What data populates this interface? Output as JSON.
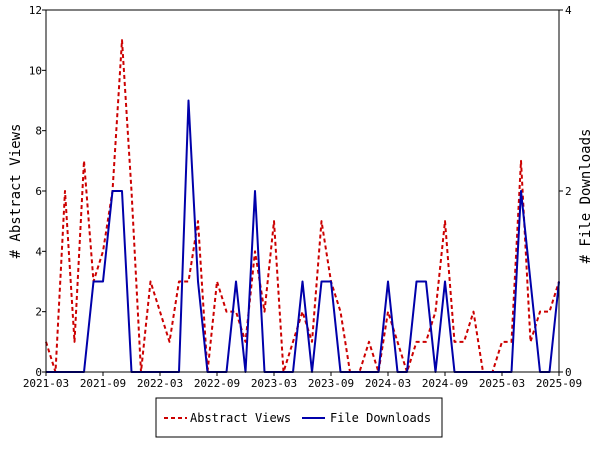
{
  "chart_data": {
    "type": "line",
    "ylabel": "# Abstract Views",
    "y2label": "# File Downloads",
    "ylim": [
      0,
      12
    ],
    "y2lim": [
      0,
      4
    ],
    "yticks": [
      "0",
      "2",
      "4",
      "6",
      "8",
      "10",
      "12"
    ],
    "y2ticks": [
      "0",
      "2",
      "4"
    ],
    "xticks": [
      "2021-03",
      "2021-09",
      "2022-03",
      "2022-09",
      "2023-03",
      "2023-09",
      "2024-03",
      "2024-09",
      "2025-03",
      "2025-09"
    ],
    "x_start": "2021-03",
    "x_end": "2025-09",
    "grid": false,
    "legend_position": "bottom",
    "series": [
      {
        "name": "Abstract Views",
        "axis": "left",
        "color": "#cc0000",
        "style": "dashed",
        "points": [
          [
            "2021-03",
            1
          ],
          [
            "2021-04",
            0
          ],
          [
            "2021-05",
            6
          ],
          [
            "2021-06",
            1
          ],
          [
            "2021-07",
            7
          ],
          [
            "2021-08",
            3
          ],
          [
            "2021-09",
            4
          ],
          [
            "2021-10",
            6
          ],
          [
            "2021-11",
            11
          ],
          [
            "2021-12",
            6
          ],
          [
            "2022-01",
            0
          ],
          [
            "2022-02",
            3
          ],
          [
            "2022-03",
            2
          ],
          [
            "2022-04",
            1
          ],
          [
            "2022-05",
            3
          ],
          [
            "2022-06",
            3
          ],
          [
            "2022-07",
            5
          ],
          [
            "2022-08",
            0
          ],
          [
            "2022-09",
            3
          ],
          [
            "2022-10",
            2
          ],
          [
            "2022-11",
            2
          ],
          [
            "2022-12",
            1
          ],
          [
            "2023-01",
            4
          ],
          [
            "2023-02",
            2
          ],
          [
            "2023-03",
            5
          ],
          [
            "2023-04",
            0
          ],
          [
            "2023-05",
            1
          ],
          [
            "2023-06",
            2
          ],
          [
            "2023-07",
            1
          ],
          [
            "2023-08",
            5
          ],
          [
            "2023-09",
            3
          ],
          [
            "2023-10",
            2
          ],
          [
            "2023-11",
            0
          ],
          [
            "2023-12",
            0
          ],
          [
            "2024-01",
            1
          ],
          [
            "2024-02",
            0
          ],
          [
            "2024-03",
            2
          ],
          [
            "2024-04",
            1
          ],
          [
            "2024-05",
            0
          ],
          [
            "2024-06",
            1
          ],
          [
            "2024-07",
            1
          ],
          [
            "2024-08",
            2
          ],
          [
            "2024-09",
            5
          ],
          [
            "2024-10",
            1
          ],
          [
            "2024-11",
            1
          ],
          [
            "2024-12",
            2
          ],
          [
            "2025-01",
            0
          ],
          [
            "2025-02",
            0
          ],
          [
            "2025-03",
            1
          ],
          [
            "2025-04",
            1
          ],
          [
            "2025-05",
            7
          ],
          [
            "2025-06",
            1
          ],
          [
            "2025-07",
            2
          ],
          [
            "2025-08",
            2
          ],
          [
            "2025-09",
            3
          ]
        ]
      },
      {
        "name": "File Downloads",
        "axis": "right",
        "color": "#0000aa",
        "style": "solid",
        "points": [
          [
            "2021-03",
            0
          ],
          [
            "2021-04",
            0
          ],
          [
            "2021-05",
            0
          ],
          [
            "2021-06",
            0
          ],
          [
            "2021-07",
            0
          ],
          [
            "2021-08",
            1
          ],
          [
            "2021-09",
            1
          ],
          [
            "2021-10",
            2
          ],
          [
            "2021-11",
            2
          ],
          [
            "2021-12",
            0
          ],
          [
            "2022-01",
            0
          ],
          [
            "2022-02",
            0
          ],
          [
            "2022-03",
            0
          ],
          [
            "2022-04",
            0
          ],
          [
            "2022-05",
            0
          ],
          [
            "2022-06",
            3
          ],
          [
            "2022-07",
            1
          ],
          [
            "2022-08",
            0
          ],
          [
            "2022-09",
            0
          ],
          [
            "2022-10",
            0
          ],
          [
            "2022-11",
            1
          ],
          [
            "2022-12",
            0
          ],
          [
            "2023-01",
            2
          ],
          [
            "2023-02",
            0
          ],
          [
            "2023-03",
            0
          ],
          [
            "2023-04",
            0
          ],
          [
            "2023-05",
            0
          ],
          [
            "2023-06",
            1
          ],
          [
            "2023-07",
            0
          ],
          [
            "2023-08",
            1
          ],
          [
            "2023-09",
            1
          ],
          [
            "2023-10",
            0
          ],
          [
            "2023-11",
            0
          ],
          [
            "2023-12",
            0
          ],
          [
            "2024-01",
            0
          ],
          [
            "2024-02",
            0
          ],
          [
            "2024-03",
            1
          ],
          [
            "2024-04",
            0
          ],
          [
            "2024-05",
            0
          ],
          [
            "2024-06",
            1
          ],
          [
            "2024-07",
            1
          ],
          [
            "2024-08",
            0
          ],
          [
            "2024-09",
            1
          ],
          [
            "2024-10",
            0
          ],
          [
            "2024-11",
            0
          ],
          [
            "2024-12",
            0
          ],
          [
            "2025-01",
            0
          ],
          [
            "2025-02",
            0
          ],
          [
            "2025-03",
            0
          ],
          [
            "2025-04",
            0
          ],
          [
            "2025-05",
            2
          ],
          [
            "2025-06",
            1
          ],
          [
            "2025-07",
            0
          ],
          [
            "2025-08",
            0
          ],
          [
            "2025-09",
            1
          ]
        ]
      }
    ]
  }
}
